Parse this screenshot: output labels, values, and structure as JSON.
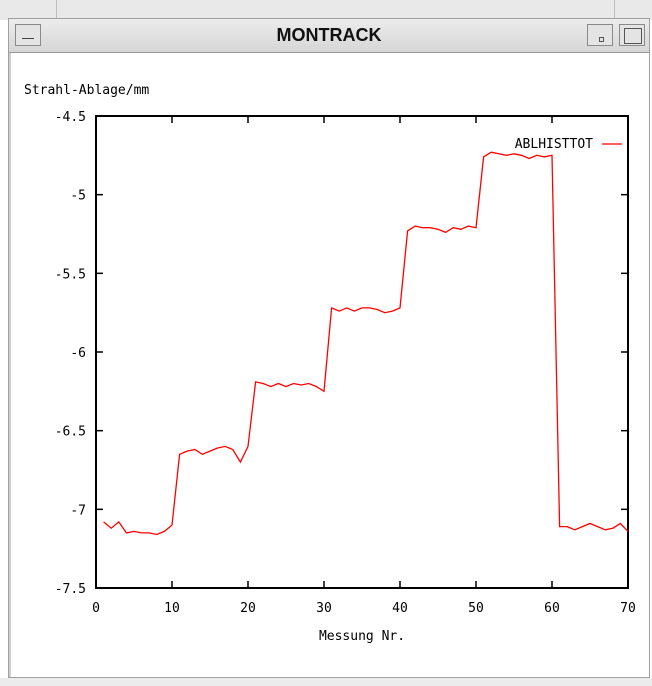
{
  "window": {
    "title": "MONTRACK"
  },
  "chart_data": {
    "type": "line",
    "ylabel": "Strahl-Ablage/mm",
    "xlabel": "Messung Nr.",
    "xlim": [
      0,
      70
    ],
    "ylim": [
      -7.5,
      -4.5
    ],
    "x_ticks": [
      "0",
      "10",
      "20",
      "30",
      "40",
      "50",
      "60",
      "70"
    ],
    "y_ticks": [
      "-4.5",
      "-5",
      "-5.5",
      "-6",
      "-6.5",
      "-7",
      "-7.5"
    ],
    "grid": false,
    "legend_position": "top-right",
    "series": [
      {
        "name": "ABLHISTTOT",
        "color": "#ff0000",
        "x": [
          1,
          2,
          3,
          4,
          5,
          6,
          7,
          8,
          9,
          10,
          11,
          12,
          13,
          14,
          15,
          16,
          17,
          18,
          19,
          20,
          21,
          22,
          23,
          24,
          25,
          26,
          27,
          28,
          29,
          30,
          31,
          32,
          33,
          34,
          35,
          36,
          37,
          38,
          39,
          40,
          41,
          42,
          43,
          44,
          45,
          46,
          47,
          48,
          49,
          50,
          51,
          52,
          53,
          54,
          55,
          56,
          57,
          58,
          59,
          60,
          61,
          62,
          63,
          64,
          65,
          66,
          67,
          68,
          69,
          70
        ],
        "values": [
          -7.08,
          -7.12,
          -7.08,
          -7.15,
          -7.14,
          -7.15,
          -7.15,
          -7.16,
          -7.14,
          -7.1,
          -6.65,
          -6.63,
          -6.62,
          -6.65,
          -6.63,
          -6.61,
          -6.6,
          -6.62,
          -6.7,
          -6.6,
          -6.19,
          -6.2,
          -6.22,
          -6.2,
          -6.22,
          -6.2,
          -6.21,
          -6.2,
          -6.22,
          -6.25,
          -5.72,
          -5.74,
          -5.72,
          -5.74,
          -5.72,
          -5.72,
          -5.73,
          -5.75,
          -5.74,
          -5.72,
          -5.23,
          -5.2,
          -5.21,
          -5.21,
          -5.22,
          -5.24,
          -5.21,
          -5.22,
          -5.2,
          -5.21,
          -4.76,
          -4.73,
          -4.74,
          -4.75,
          -4.74,
          -4.75,
          -4.77,
          -4.75,
          -4.76,
          -4.75,
          -7.11,
          -7.11,
          -7.13,
          -7.11,
          -7.09,
          -7.11,
          -7.13,
          -7.12,
          -7.09,
          -7.14
        ]
      }
    ]
  }
}
